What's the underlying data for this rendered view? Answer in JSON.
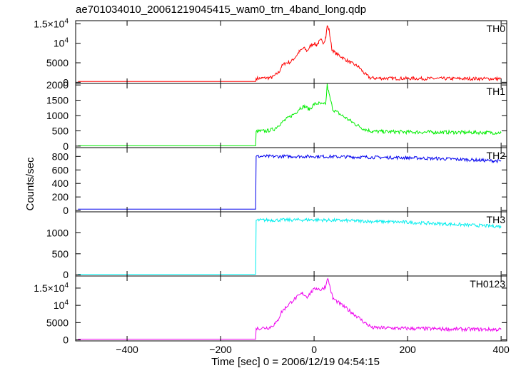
{
  "title": "ae701034010_20061219045415_wam0_trn_4band_long.qdp",
  "ylabel": "Counts/sec",
  "xlabel": "Time [sec] 0 = 2006/12/19 04:54:15",
  "chart_data": {
    "type": "line",
    "title": "ae701034010_20061219045415_wam0_trn_4band_long.qdp",
    "xlabel": "Time [sec] 0 = 2006/12/19 04:54:15",
    "ylabel": "Counts/sec",
    "xlim": [
      -510,
      412
    ],
    "x_ticks": [
      -400,
      -200,
      0,
      200,
      400
    ],
    "x_tick_labels": [
      "−400",
      "−200",
      "0",
      "200",
      "400"
    ],
    "series": [
      {
        "name": "TH0",
        "color": "#ff0000",
        "ylim": [
          -300,
          15800
        ],
        "y_ticks": [
          0,
          5000,
          10000,
          15000
        ],
        "y_tick_labels": [
          [
            "0",
            ""
          ],
          [
            "5000",
            ""
          ],
          [
            "10",
            "4"
          ],
          [
            "1.5×10",
            "4"
          ]
        ],
        "points": [
          [
            -505,
            220
          ],
          [
            -125,
            220
          ],
          [
            -124,
            1000
          ],
          [
            -110,
            1050
          ],
          [
            -90,
            1200
          ],
          [
            -75,
            2600
          ],
          [
            -70,
            4000
          ],
          [
            -62,
            4900
          ],
          [
            -50,
            5200
          ],
          [
            -40,
            6500
          ],
          [
            -32,
            7800
          ],
          [
            -22,
            8800
          ],
          [
            -15,
            8000
          ],
          [
            -8,
            9300
          ],
          [
            0,
            10000
          ],
          [
            5,
            9500
          ],
          [
            10,
            10300
          ],
          [
            15,
            10800
          ],
          [
            20,
            10200
          ],
          [
            25,
            11500
          ],
          [
            28,
            14500
          ],
          [
            32,
            13500
          ],
          [
            38,
            8500
          ],
          [
            45,
            7500
          ],
          [
            55,
            6800
          ],
          [
            65,
            6000
          ],
          [
            78,
            5000
          ],
          [
            95,
            4000
          ],
          [
            108,
            2200
          ],
          [
            120,
            1100
          ],
          [
            150,
            1000
          ],
          [
            250,
            950
          ],
          [
            400,
            900
          ]
        ]
      },
      {
        "name": "TH1",
        "color": "#00ee00",
        "ylim": [
          -50,
          2050
        ],
        "y_ticks": [
          0,
          500,
          1000,
          1500,
          2000
        ],
        "y_tick_labels": [
          [
            "0",
            ""
          ],
          [
            "500",
            ""
          ],
          [
            "1000",
            ""
          ],
          [
            "1500",
            ""
          ],
          [
            "2000",
            ""
          ]
        ],
        "points": [
          [
            -505,
            10
          ],
          [
            -125,
            10
          ],
          [
            -124,
            480
          ],
          [
            -100,
            500
          ],
          [
            -85,
            560
          ],
          [
            -75,
            700
          ],
          [
            -62,
            850
          ],
          [
            -50,
            980
          ],
          [
            -40,
            1080
          ],
          [
            -30,
            1250
          ],
          [
            -20,
            1300
          ],
          [
            -10,
            1200
          ],
          [
            0,
            1370
          ],
          [
            10,
            1400
          ],
          [
            20,
            1350
          ],
          [
            25,
            1400
          ],
          [
            28,
            2000
          ],
          [
            32,
            1700
          ],
          [
            40,
            1200
          ],
          [
            55,
            1050
          ],
          [
            70,
            900
          ],
          [
            90,
            700
          ],
          [
            108,
            550
          ],
          [
            125,
            480
          ],
          [
            200,
            460
          ],
          [
            300,
            450
          ],
          [
            400,
            440
          ]
        ]
      },
      {
        "name": "TH2",
        "color": "#0000ee",
        "ylim": [
          -20,
          930
        ],
        "y_ticks": [
          0,
          200,
          400,
          600,
          800
        ],
        "y_tick_labels": [
          [
            "0",
            ""
          ],
          [
            "200",
            ""
          ],
          [
            "400",
            ""
          ],
          [
            "600",
            ""
          ],
          [
            "800",
            ""
          ]
        ],
        "points": [
          [
            -505,
            20
          ],
          [
            -125,
            20
          ],
          [
            -124,
            800
          ],
          [
            0,
            800
          ],
          [
            100,
            790
          ],
          [
            200,
            780
          ],
          [
            300,
            760
          ],
          [
            400,
            730
          ]
        ]
      },
      {
        "name": "TH3",
        "color": "#00eeee",
        "ylim": [
          -30,
          1500
        ],
        "y_ticks": [
          0,
          500,
          1000
        ],
        "y_tick_labels": [
          [
            "0",
            ""
          ],
          [
            "500",
            ""
          ],
          [
            "1000",
            ""
          ]
        ],
        "points": [
          [
            -505,
            10
          ],
          [
            -125,
            10
          ],
          [
            -124,
            1300
          ],
          [
            0,
            1310
          ],
          [
            100,
            1280
          ],
          [
            200,
            1250
          ],
          [
            300,
            1200
          ],
          [
            400,
            1150
          ]
        ]
      },
      {
        "name": "TH0123",
        "color": "#ee00ee",
        "ylim": [
          -300,
          18500
        ],
        "y_ticks": [
          0,
          5000,
          10000,
          15000
        ],
        "y_tick_labels": [
          [
            "0",
            ""
          ],
          [
            "5000",
            ""
          ],
          [
            "10",
            "4"
          ],
          [
            "1.5×10",
            "4"
          ]
        ],
        "points": [
          [
            -505,
            200
          ],
          [
            -125,
            200
          ],
          [
            -124,
            3300
          ],
          [
            -95,
            3600
          ],
          [
            -80,
            5000
          ],
          [
            -70,
            8000
          ],
          [
            -60,
            9500
          ],
          [
            -45,
            11500
          ],
          [
            -35,
            12500
          ],
          [
            -25,
            13500
          ],
          [
            -15,
            12500
          ],
          [
            -5,
            14000
          ],
          [
            5,
            15000
          ],
          [
            15,
            14500
          ],
          [
            25,
            15500
          ],
          [
            28,
            18000
          ],
          [
            32,
            16500
          ],
          [
            40,
            12000
          ],
          [
            55,
            10500
          ],
          [
            70,
            9000
          ],
          [
            90,
            7000
          ],
          [
            108,
            5000
          ],
          [
            125,
            3500
          ],
          [
            200,
            3300
          ],
          [
            300,
            3100
          ],
          [
            400,
            3000
          ]
        ]
      }
    ]
  }
}
